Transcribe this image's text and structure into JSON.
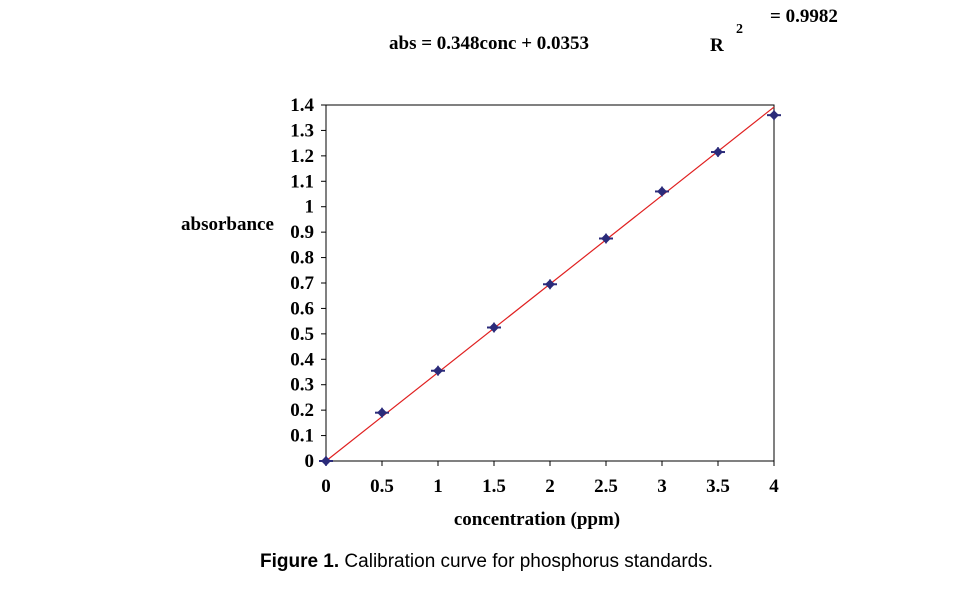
{
  "chart_data": {
    "type": "scatter",
    "equation": "abs = 0.348conc + 0.0353",
    "r_label": "R",
    "r_superscript": "2",
    "r_value": "= 0.9982",
    "xlabel": "concentration (ppm)",
    "ylabel": "absorbance",
    "xlim": [
      0,
      4
    ],
    "ylim": [
      0,
      1.4
    ],
    "x_ticks": [
      "0",
      "0.5",
      "1",
      "1.5",
      "2",
      "2.5",
      "3",
      "3.5",
      "4"
    ],
    "y_ticks": [
      "0",
      "0.1",
      "0.2",
      "0.3",
      "0.4",
      "0.5",
      "0.6",
      "0.7",
      "0.8",
      "0.9",
      "1",
      "1.1",
      "1.2",
      "1.3",
      "1.4"
    ],
    "grid": false,
    "series": [
      {
        "x": [
          0,
          0.5,
          1,
          1.5,
          2,
          2.5,
          3,
          3.5,
          4
        ],
        "y": [
          0,
          0.19,
          0.355,
          0.525,
          0.695,
          0.875,
          1.06,
          1.215,
          1.36
        ]
      }
    ],
    "trendline": {
      "slope": 0.348,
      "intercept": 0.0353
    },
    "colors": {
      "points": "#2b2b7a",
      "trendline": "#e02020",
      "axes": "#000000"
    }
  },
  "caption": {
    "label": "Figure 1.",
    "text": " Calibration curve for phosphorus standards."
  }
}
